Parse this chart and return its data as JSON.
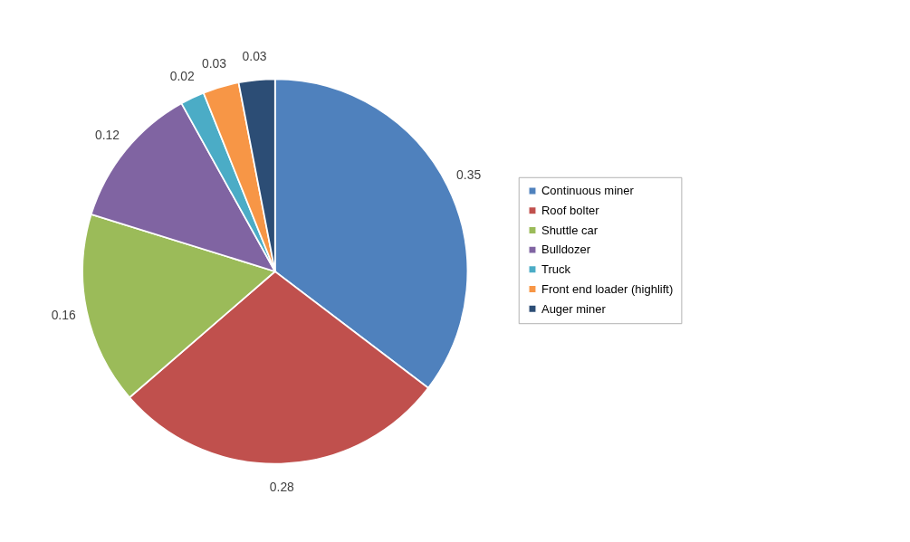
{
  "chart_data": {
    "type": "pie",
    "categories": [
      "Continuous miner",
      "Roof bolter",
      "Shuttle car",
      "Bulldozer",
      "Truck",
      "Front end loader (highlift)",
      "Auger miner"
    ],
    "values": [
      0.35,
      0.28,
      0.16,
      0.12,
      0.02,
      0.03,
      0.03
    ],
    "colors": [
      "#4f81bd",
      "#c0504d",
      "#9bbb59",
      "#8064a2",
      "#4bacc6",
      "#f79646",
      "#2c4d75"
    ],
    "data_labels": true,
    "legend": "right"
  }
}
